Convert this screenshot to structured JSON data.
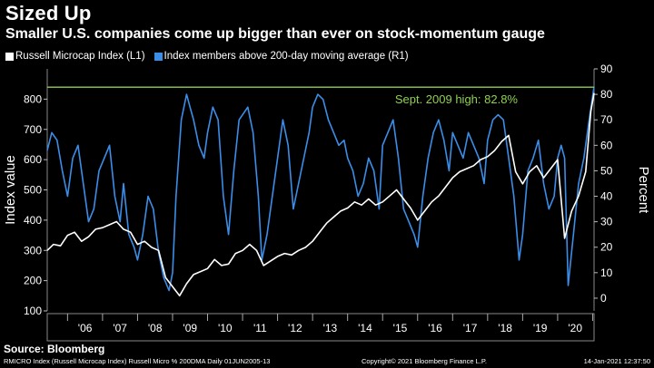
{
  "header": {
    "title": "Sized Up",
    "subtitle": "Smaller U.S. companies come up bigger than ever on stock-momentum gauge"
  },
  "colors": {
    "background": "#000000",
    "microcap": "#ffffff",
    "breadth": "#3b8ee8",
    "threshold": "#8fd14f"
  },
  "chart_data": {
    "type": "line",
    "title": "Sized Up",
    "subtitle": "Smaller U.S. companies come up bigger than ever on stock-momentum gauge",
    "xlabel": "",
    "ylabel_left": "Index value",
    "ylabel_right": "Percent",
    "x_range": [
      2005.42,
      2021.04
    ],
    "ylim_left": [
      100,
      900
    ],
    "ylim_right": [
      -5,
      90
    ],
    "left_ticks": [
      "100",
      "200",
      "300",
      "400",
      "500",
      "600",
      "700",
      "800"
    ],
    "left_tick_values": [
      100,
      200,
      300,
      400,
      500,
      600,
      700,
      800
    ],
    "right_ticks": [
      "0",
      "10",
      "20",
      "30",
      "40",
      "50",
      "60",
      "70",
      "80",
      "90"
    ],
    "right_tick_values": [
      0,
      10,
      20,
      30,
      40,
      50,
      60,
      70,
      80,
      90
    ],
    "x_tick_labels": [
      "'06",
      "'07",
      "'08",
      "'09",
      "'10",
      "'11",
      "'12",
      "'13",
      "'14",
      "'15",
      "'16",
      "'17",
      "'18",
      "'19",
      "'20"
    ],
    "x_tick_years": [
      2006,
      2007,
      2008,
      2009,
      2010,
      2011,
      2012,
      2013,
      2014,
      2015,
      2016,
      2017,
      2018,
      2019,
      2020
    ],
    "legend_position": "top-left",
    "threshold": {
      "value": 82.8,
      "axis": "right",
      "label": "Sept. 2009 high: 82.8%"
    },
    "series": [
      {
        "name": "Russell Microcap Index (L1)",
        "axis": "left",
        "x": [
          2005.42,
          2005.6,
          2005.8,
          2006.0,
          2006.2,
          2006.4,
          2006.6,
          2006.8,
          2007.0,
          2007.2,
          2007.4,
          2007.6,
          2007.8,
          2008.0,
          2008.2,
          2008.4,
          2008.6,
          2008.8,
          2009.0,
          2009.2,
          2009.4,
          2009.6,
          2009.8,
          2010.0,
          2010.2,
          2010.4,
          2010.6,
          2010.8,
          2011.0,
          2011.2,
          2011.4,
          2011.6,
          2011.8,
          2012.0,
          2012.2,
          2012.4,
          2012.6,
          2012.8,
          2013.0,
          2013.2,
          2013.4,
          2013.6,
          2013.8,
          2014.0,
          2014.2,
          2014.4,
          2014.6,
          2014.8,
          2015.0,
          2015.2,
          2015.4,
          2015.6,
          2015.8,
          2016.0,
          2016.2,
          2016.4,
          2016.6,
          2016.8,
          2017.0,
          2017.2,
          2017.4,
          2017.6,
          2017.8,
          2018.0,
          2018.2,
          2018.4,
          2018.6,
          2018.8,
          2019.0,
          2019.2,
          2019.4,
          2019.6,
          2019.8,
          2020.0,
          2020.2,
          2020.4,
          2020.6,
          2020.8,
          2020.95,
          2021.04
        ],
        "values": [
          300,
          320,
          315,
          350,
          360,
          330,
          345,
          370,
          375,
          385,
          395,
          370,
          360,
          320,
          330,
          310,
          300,
          210,
          180,
          150,
          190,
          220,
          230,
          240,
          270,
          250,
          255,
          290,
          300,
          320,
          300,
          250,
          265,
          280,
          290,
          285,
          300,
          310,
          330,
          360,
          390,
          410,
          430,
          440,
          460,
          450,
          470,
          450,
          460,
          480,
          500,
          470,
          440,
          400,
          430,
          460,
          480,
          510,
          540,
          560,
          570,
          580,
          600,
          610,
          630,
          660,
          680,
          560,
          520,
          560,
          580,
          540,
          570,
          600,
          340,
          430,
          480,
          560,
          760,
          820
        ]
      },
      {
        "name": "Index members above 200-day moving average (R1)",
        "axis": "right",
        "x": [
          2005.42,
          2005.55,
          2005.7,
          2005.85,
          2006.0,
          2006.15,
          2006.3,
          2006.45,
          2006.6,
          2006.75,
          2006.9,
          2007.05,
          2007.2,
          2007.35,
          2007.5,
          2007.6,
          2007.75,
          2007.9,
          2008.0,
          2008.15,
          2008.3,
          2008.45,
          2008.6,
          2008.75,
          2008.9,
          2009.0,
          2009.1,
          2009.25,
          2009.4,
          2009.5,
          2009.6,
          2009.75,
          2009.9,
          2010.0,
          2010.15,
          2010.3,
          2010.45,
          2010.6,
          2010.75,
          2010.9,
          2011.0,
          2011.15,
          2011.3,
          2011.45,
          2011.55,
          2011.7,
          2011.85,
          2012.0,
          2012.15,
          2012.3,
          2012.45,
          2012.6,
          2012.75,
          2012.9,
          2013.0,
          2013.15,
          2013.3,
          2013.45,
          2013.6,
          2013.75,
          2013.9,
          2014.0,
          2014.15,
          2014.3,
          2014.45,
          2014.6,
          2014.75,
          2014.9,
          2015.0,
          2015.15,
          2015.3,
          2015.45,
          2015.6,
          2015.75,
          2015.9,
          2016.0,
          2016.15,
          2016.3,
          2016.45,
          2016.6,
          2016.75,
          2016.9,
          2017.0,
          2017.15,
          2017.3,
          2017.45,
          2017.6,
          2017.75,
          2017.9,
          2018.0,
          2018.15,
          2018.3,
          2018.45,
          2018.6,
          2018.75,
          2018.9,
          2019.0,
          2019.15,
          2019.3,
          2019.45,
          2019.6,
          2019.75,
          2019.9,
          2020.0,
          2020.1,
          2020.2,
          2020.3,
          2020.45,
          2020.6,
          2020.75,
          2020.9,
          2021.04
        ],
        "values": [
          58,
          65,
          62,
          50,
          40,
          55,
          60,
          45,
          30,
          35,
          50,
          55,
          60,
          40,
          30,
          45,
          25,
          20,
          15,
          25,
          40,
          35,
          18,
          8,
          3,
          10,
          40,
          70,
          80,
          75,
          70,
          60,
          55,
          65,
          75,
          70,
          40,
          25,
          50,
          70,
          72,
          75,
          65,
          40,
          15,
          25,
          40,
          55,
          70,
          60,
          35,
          45,
          55,
          65,
          75,
          80,
          78,
          70,
          65,
          60,
          62,
          55,
          50,
          40,
          45,
          55,
          50,
          35,
          60,
          65,
          70,
          55,
          35,
          30,
          25,
          20,
          40,
          55,
          65,
          70,
          62,
          50,
          65,
          60,
          55,
          65,
          60,
          55,
          45,
          62,
          70,
          72,
          70,
          55,
          40,
          15,
          25,
          50,
          55,
          62,
          45,
          35,
          40,
          55,
          60,
          55,
          5,
          25,
          45,
          55,
          70,
          83
        ]
      }
    ]
  },
  "footer": {
    "source": "Source: Bloomberg",
    "ticker": "RMICRO Index (Russell Microcap Index) Russell Micro % 200DMA  Daily 01JUN2005-13",
    "copyright": "Copyright© 2021 Bloomberg Finance L.P.",
    "timestamp": "14-Jan-2021 12:37:50"
  }
}
